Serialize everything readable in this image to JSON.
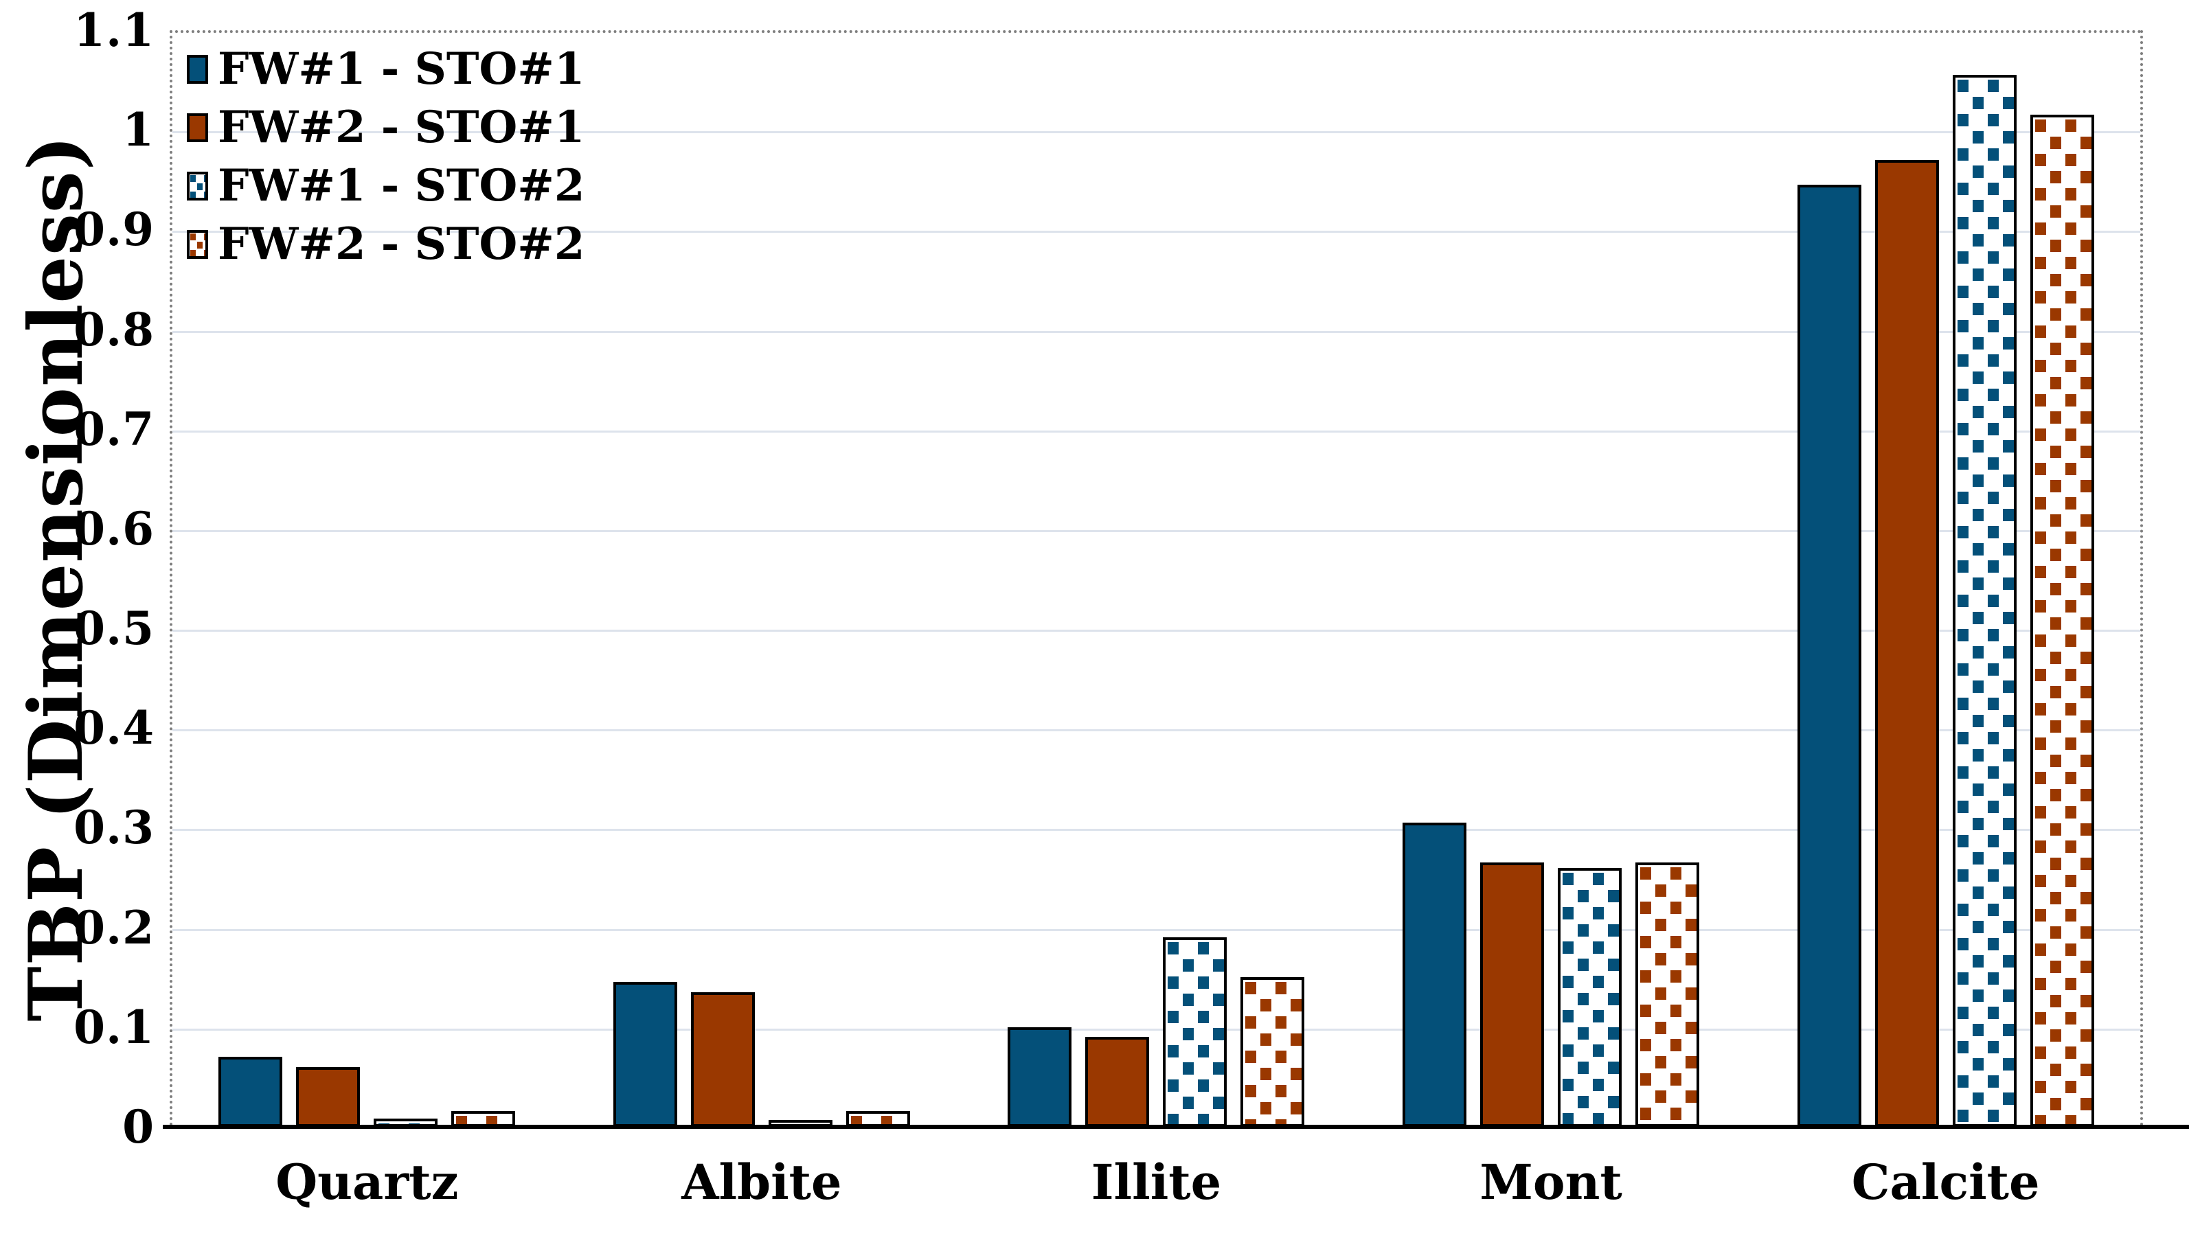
{
  "chart_data": {
    "type": "bar",
    "title": "",
    "xlabel": "",
    "ylabel": "TBP (Dimensionless)",
    "ylim": [
      0,
      1.1
    ],
    "ytick_step": 0.1,
    "ytick_labels": [
      "0",
      "0.1",
      "0.2",
      "0.3",
      "0.4",
      "0.5",
      "0.6",
      "0.7",
      "0.8",
      "0.9",
      "1",
      "1.1"
    ],
    "grid": true,
    "legend_position": "top-left",
    "categories": [
      "Quartz",
      "Albite",
      "Illite",
      "Mont",
      "Calcite"
    ],
    "series": [
      {
        "name": "FW#1 - STO#1",
        "style": "solid",
        "color": "#045079",
        "values": [
          0.07,
          0.145,
          0.1,
          0.305,
          0.945
        ]
      },
      {
        "name": "FW#2 - STO#1",
        "style": "solid",
        "color": "#9A3800",
        "values": [
          0.06,
          0.135,
          0.09,
          0.265,
          0.97
        ]
      },
      {
        "name": "FW#1 - STO#2",
        "style": "dotted",
        "color": "#045079",
        "values": [
          0.008,
          0.005,
          0.19,
          0.26,
          1.055
        ]
      },
      {
        "name": "FW#2 - STO#2",
        "style": "dotted",
        "color": "#9A3800",
        "values": [
          0.016,
          0.016,
          0.15,
          0.265,
          1.015
        ]
      }
    ],
    "colors": {
      "axis_line": "#000000",
      "gridline": "#dde3ec",
      "plot_frame": "#7f7f7f",
      "pattern_background": "#ffffff"
    }
  }
}
